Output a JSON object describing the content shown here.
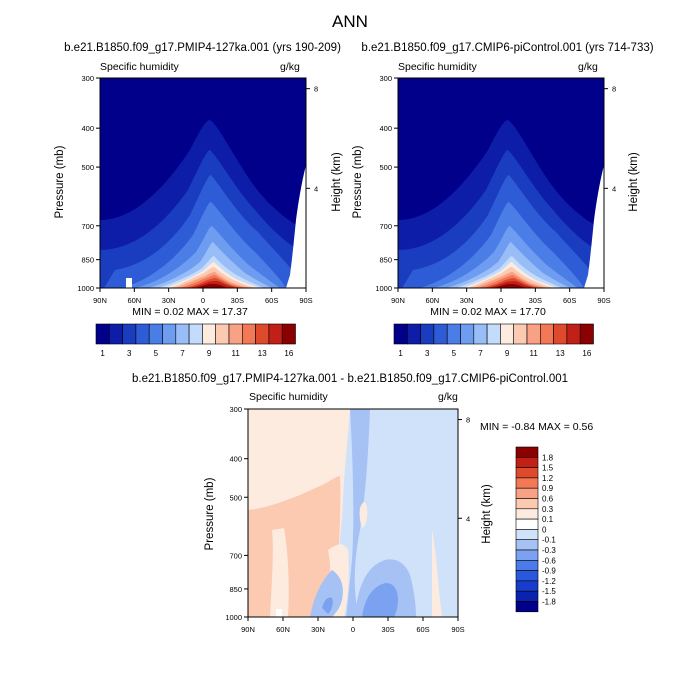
{
  "main_title": "ANN",
  "colors": {
    "abs": [
      "#00008b",
      "#0d1da8",
      "#1a3cbf",
      "#2d5cd6",
      "#4a7ee6",
      "#6e9cf0",
      "#98bdf7",
      "#c4dcfb",
      "#fdebe0",
      "#fcc9b1",
      "#f8a185",
      "#f27856",
      "#e04a2c",
      "#c22017",
      "#8b0000"
    ],
    "diff": [
      "#00008b",
      "#0a22b0",
      "#163dcc",
      "#2a58dc",
      "#4b7be8",
      "#7aa2f0",
      "#a6c2f5",
      "#d0e2f9",
      "#ffffff",
      "#fdebe0",
      "#fcc9b1",
      "#f8a185",
      "#f27856",
      "#e04a2c",
      "#c22017",
      "#8b0000"
    ]
  },
  "chart_data": [
    {
      "type": "heatmap",
      "title": "b.e21.B1850.f09_g17.PMIP4-127ka.001 (yrs 190-209)",
      "left_label": "Specific humidity",
      "right_label": "g/kg",
      "ylabel": "Pressure (mb)",
      "y2label": "Height (km)",
      "x_ticks": [
        "90N",
        "60N",
        "30N",
        "0",
        "30S",
        "60S",
        "90S"
      ],
      "y_ticks": [
        "300",
        "400",
        "500",
        "700",
        "850",
        "1000"
      ],
      "y2_ticks": [
        "8",
        "4"
      ],
      "xlim": [
        90,
        -90
      ],
      "ylim": [
        1000,
        300
      ],
      "min": 0.02,
      "max": 17.37,
      "stats_text": "MIN =   0.02  MAX =  17.37",
      "colorbar_labels": [
        "1",
        "3",
        "5",
        "7",
        "9",
        "11",
        "13",
        "16"
      ]
    },
    {
      "type": "heatmap",
      "title": "b.e21.B1850.f09_g17.CMIP6-piControl.001 (yrs 714-733)",
      "left_label": "Specific humidity",
      "right_label": "g/kg",
      "ylabel": "Pressure (mb)",
      "y2label": "Height (km)",
      "x_ticks": [
        "90N",
        "60N",
        "30N",
        "0",
        "30S",
        "60S",
        "90S"
      ],
      "y_ticks": [
        "300",
        "400",
        "500",
        "700",
        "850",
        "1000"
      ],
      "y2_ticks": [
        "8",
        "4"
      ],
      "xlim": [
        90,
        -90
      ],
      "ylim": [
        1000,
        300
      ],
      "min": 0.02,
      "max": 17.7,
      "stats_text": "MIN =   0.02  MAX =  17.70",
      "colorbar_labels": [
        "1",
        "3",
        "5",
        "7",
        "9",
        "11",
        "13",
        "16"
      ]
    },
    {
      "type": "heatmap",
      "title": "b.e21.B1850.f09_g17.PMIP4-127ka.001 - b.e21.B1850.f09_g17.CMIP6-piControl.001",
      "left_label": "Specific humidity",
      "right_label": "g/kg",
      "ylabel": "Pressure (mb)",
      "y2label": "Height (km)",
      "x_ticks": [
        "90N",
        "60N",
        "30N",
        "0",
        "30S",
        "60S",
        "90S"
      ],
      "y_ticks": [
        "300",
        "400",
        "500",
        "700",
        "850",
        "1000"
      ],
      "y2_ticks": [
        "8",
        "4"
      ],
      "xlim": [
        90,
        -90
      ],
      "ylim": [
        1000,
        300
      ],
      "min": -0.84,
      "max": 0.56,
      "stats_text": "MIN =  -0.84  MAX =   0.56",
      "colorbar_labels": [
        "1.8",
        "1.5",
        "1.2",
        "0.9",
        "0.6",
        "0.3",
        "0.1",
        "0",
        "-0.1",
        "-0.3",
        "-0.6",
        "-0.9",
        "-1.2",
        "-1.5",
        "-1.8"
      ]
    }
  ]
}
